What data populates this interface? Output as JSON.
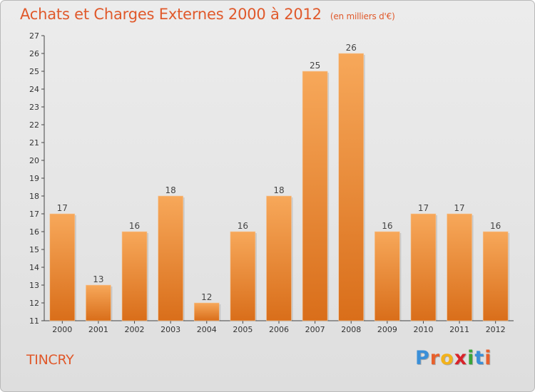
{
  "header": {
    "title": "Achats et Charges Externes 2000 à 2012",
    "subtitle": "(en milliers d'€)"
  },
  "footer": {
    "commune": "TINCRY",
    "logo_letters": [
      "P",
      "r",
      "o",
      "x",
      "i",
      "t",
      "i"
    ],
    "logo_colors": [
      "#3a8fd8",
      "#e8602c",
      "#f2b21b",
      "#d8232a",
      "#3aa53a",
      "#3a8fd8",
      "#e8602c"
    ]
  },
  "chart_data": {
    "type": "bar",
    "categories": [
      "2000",
      "2001",
      "2002",
      "2003",
      "2004",
      "2005",
      "2006",
      "2007",
      "2008",
      "2009",
      "2010",
      "2011",
      "2012"
    ],
    "values": [
      17,
      13,
      16,
      18,
      12,
      16,
      18,
      25,
      26,
      16,
      17,
      17,
      16
    ],
    "ylim": [
      11,
      27
    ],
    "yticks": [
      11,
      12,
      13,
      14,
      15,
      16,
      17,
      18,
      19,
      20,
      21,
      22,
      23,
      24,
      25,
      26,
      27
    ],
    "grid": false,
    "bar_color": "#e8812f",
    "data_labels": true
  }
}
